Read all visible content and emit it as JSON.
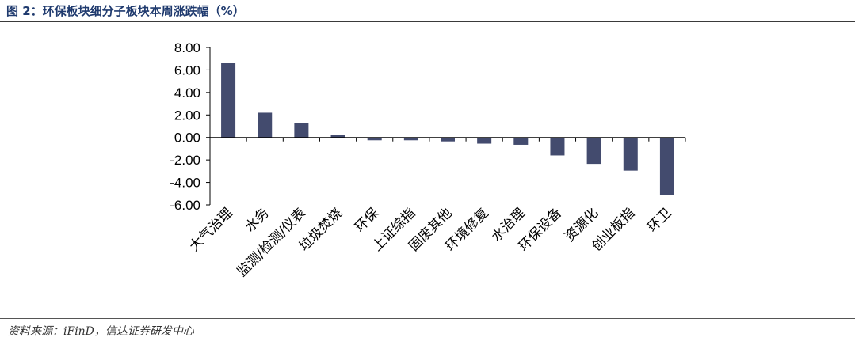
{
  "figure": {
    "title": "图 2：环保板块细分子板块本周涨跌幅（%）",
    "source": "资料来源：iFinD，信达证券研发中心"
  },
  "chart_data": {
    "type": "bar",
    "title": "环保板块细分子板块本周涨跌幅（%）",
    "xlabel": "",
    "ylabel": "",
    "ylim": [
      -6,
      8
    ],
    "yticks": [
      "8.00",
      "6.00",
      "4.00",
      "2.00",
      "0.00",
      "-2.00",
      "-4.00",
      "-6.00"
    ],
    "categories": [
      "大气治理",
      "水务",
      "监测/检测/仪表",
      "垃圾焚烧",
      "环保",
      "上证综指",
      "固废其他",
      "环境修复",
      "水治理",
      "环保设备",
      "资源化",
      "创业板指",
      "环卫"
    ],
    "values": [
      6.6,
      2.2,
      1.3,
      0.2,
      -0.25,
      -0.25,
      -0.35,
      -0.55,
      -0.65,
      -1.6,
      -2.35,
      -2.95,
      -5.1
    ],
    "bar_color": "#434b6e",
    "grid": false,
    "legend": "none"
  }
}
